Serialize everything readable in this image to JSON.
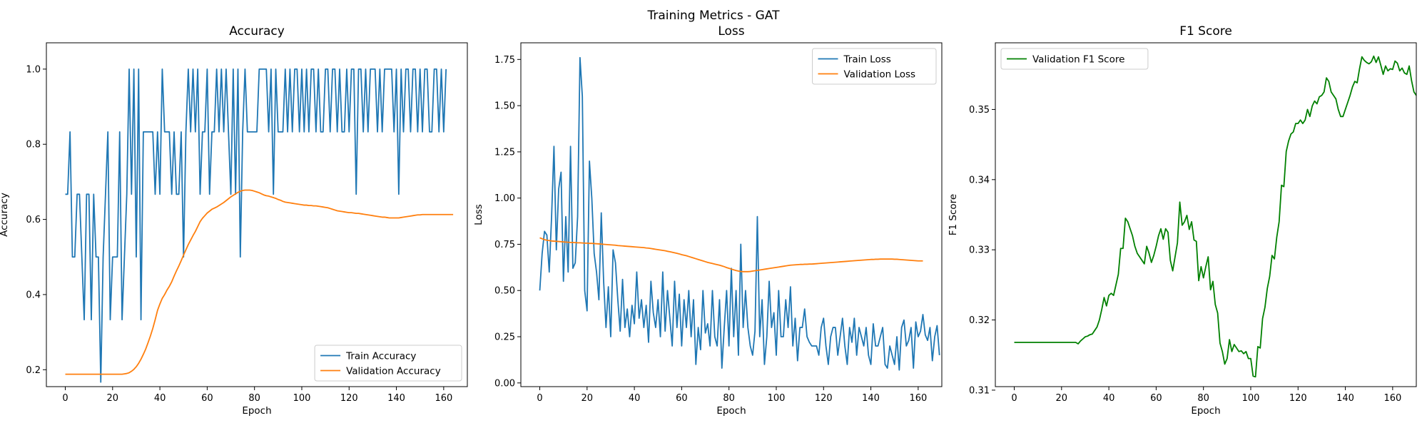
{
  "figure": {
    "suptitle": "Training Metrics - GAT"
  },
  "chart_data": [
    {
      "type": "line",
      "title": "Accuracy",
      "xlabel": "Epoch",
      "ylabel": "Accuracy",
      "xlim": [
        -8,
        170
      ],
      "ylim": [
        0.155,
        1.07
      ],
      "xticks": [
        0,
        20,
        40,
        60,
        80,
        100,
        120,
        140,
        160
      ],
      "yticks": [
        0.2,
        0.4,
        0.6,
        0.8,
        1.0
      ],
      "ytick_format": 1,
      "legend_loc": "lower-right",
      "series": [
        {
          "name": "Train Accuracy",
          "color": "#1f77b4",
          "x_start": 0,
          "values": [
            0.667,
            0.667,
            0.833,
            0.5,
            0.5,
            0.667,
            0.667,
            0.5,
            0.333,
            0.667,
            0.667,
            0.333,
            0.667,
            0.5,
            0.5,
            0.167,
            0.5,
            0.667,
            0.833,
            0.333,
            0.5,
            0.5,
            0.5,
            0.833,
            0.333,
            0.5,
            0.667,
            1.0,
            0.667,
            1.0,
            0.5,
            1.0,
            0.333,
            0.833,
            0.833,
            0.833,
            0.833,
            0.833,
            0.667,
            0.833,
            0.667,
            1.0,
            0.833,
            0.833,
            0.833,
            0.667,
            0.833,
            0.667,
            0.667,
            0.833,
            0.5,
            0.833,
            1.0,
            0.833,
            1.0,
            0.833,
            1.0,
            0.667,
            0.833,
            0.833,
            1.0,
            0.667,
            0.833,
            0.833,
            1.0,
            0.833,
            1.0,
            0.833,
            1.0,
            0.833,
            0.667,
            1.0,
            0.667,
            1.0,
            0.5,
            0.833,
            1.0,
            0.833,
            0.833,
            0.833,
            0.833,
            0.833,
            1.0,
            1.0,
            1.0,
            1.0,
            0.833,
            1.0,
            0.667,
            1.0,
            0.833,
            0.833,
            0.833,
            1.0,
            0.833,
            1.0,
            0.833,
            1.0,
            1.0,
            0.833,
            1.0,
            0.833,
            1.0,
            0.833,
            1.0,
            1.0,
            0.833,
            1.0,
            0.833,
            0.833,
            1.0,
            1.0,
            0.833,
            1.0,
            1.0,
            0.833,
            1.0,
            0.833,
            0.833,
            1.0,
            0.833,
            1.0,
            1.0,
            0.667,
            1.0,
            1.0,
            0.833,
            1.0,
            0.833,
            1.0,
            1.0,
            1.0,
            0.833,
            1.0,
            0.833,
            1.0,
            1.0,
            1.0,
            1.0,
            0.833,
            1.0,
            0.667,
            1.0,
            0.833,
            1.0,
            1.0,
            0.833,
            1.0,
            1.0,
            0.833,
            1.0,
            0.833,
            1.0,
            1.0,
            0.833,
            0.833,
            1.0,
            1.0,
            0.833,
            1.0,
            0.833,
            1.0
          ]
        },
        {
          "name": "Validation Accuracy",
          "color": "#ff7f0e",
          "x_start": 0,
          "values": [
            0.188,
            0.188,
            0.188,
            0.188,
            0.188,
            0.188,
            0.188,
            0.188,
            0.188,
            0.188,
            0.188,
            0.188,
            0.188,
            0.188,
            0.188,
            0.188,
            0.188,
            0.188,
            0.188,
            0.188,
            0.188,
            0.188,
            0.188,
            0.188,
            0.188,
            0.189,
            0.19,
            0.192,
            0.196,
            0.201,
            0.208,
            0.217,
            0.228,
            0.241,
            0.255,
            0.272,
            0.29,
            0.31,
            0.333,
            0.358,
            0.375,
            0.39,
            0.4,
            0.412,
            0.422,
            0.434,
            0.449,
            0.463,
            0.476,
            0.49,
            0.505,
            0.519,
            0.533,
            0.545,
            0.557,
            0.568,
            0.581,
            0.594,
            0.603,
            0.61,
            0.617,
            0.622,
            0.627,
            0.63,
            0.633,
            0.637,
            0.641,
            0.645,
            0.65,
            0.655,
            0.66,
            0.664,
            0.668,
            0.672,
            0.675,
            0.677,
            0.678,
            0.678,
            0.678,
            0.677,
            0.675,
            0.673,
            0.671,
            0.668,
            0.665,
            0.663,
            0.662,
            0.66,
            0.658,
            0.656,
            0.653,
            0.651,
            0.648,
            0.646,
            0.645,
            0.644,
            0.643,
            0.642,
            0.641,
            0.64,
            0.639,
            0.638,
            0.638,
            0.637,
            0.637,
            0.636,
            0.636,
            0.635,
            0.634,
            0.633,
            0.632,
            0.631,
            0.629,
            0.627,
            0.625,
            0.623,
            0.622,
            0.621,
            0.62,
            0.619,
            0.618,
            0.618,
            0.617,
            0.616,
            0.616,
            0.615,
            0.614,
            0.613,
            0.612,
            0.611,
            0.61,
            0.609,
            0.608,
            0.607,
            0.606,
            0.606,
            0.605,
            0.604,
            0.604,
            0.604,
            0.604,
            0.604,
            0.605,
            0.606,
            0.607,
            0.608,
            0.609,
            0.61,
            0.611,
            0.612,
            0.612,
            0.613,
            0.613,
            0.613,
            0.613,
            0.613,
            0.613,
            0.613,
            0.613,
            0.613,
            0.613,
            0.613,
            0.613,
            0.613,
            0.613
          ]
        }
      ]
    },
    {
      "type": "line",
      "title": "Loss",
      "xlabel": "Epoch",
      "ylabel": "Loss",
      "xlim": [
        -8,
        170
      ],
      "ylim": [
        -0.02,
        1.84
      ],
      "xticks": [
        0,
        20,
        40,
        60,
        80,
        100,
        120,
        140,
        160
      ],
      "yticks": [
        0.0,
        0.25,
        0.5,
        0.75,
        1.0,
        1.25,
        1.5,
        1.75
      ],
      "ytick_format": 2,
      "legend_loc": "upper-right",
      "series": [
        {
          "name": "Train Loss",
          "color": "#1f77b4",
          "x_start": 0,
          "values": [
            0.5,
            0.7,
            0.82,
            0.8,
            0.6,
            0.9,
            1.28,
            0.72,
            1.05,
            1.14,
            0.55,
            0.9,
            0.6,
            1.28,
            0.62,
            0.65,
            0.9,
            1.76,
            1.55,
            0.5,
            0.39,
            1.2,
            1.0,
            0.7,
            0.6,
            0.45,
            0.92,
            0.55,
            0.3,
            0.52,
            0.25,
            0.72,
            0.65,
            0.45,
            0.28,
            0.56,
            0.3,
            0.4,
            0.25,
            0.42,
            0.32,
            0.6,
            0.35,
            0.45,
            0.3,
            0.42,
            0.22,
            0.55,
            0.38,
            0.3,
            0.45,
            0.25,
            0.6,
            0.28,
            0.5,
            0.35,
            0.2,
            0.55,
            0.3,
            0.48,
            0.2,
            0.45,
            0.3,
            0.5,
            0.25,
            0.45,
            0.1,
            0.3,
            0.18,
            0.5,
            0.27,
            0.32,
            0.2,
            0.5,
            0.25,
            0.2,
            0.45,
            0.08,
            0.3,
            0.5,
            0.2,
            0.62,
            0.25,
            0.5,
            0.15,
            0.75,
            0.3,
            0.5,
            0.3,
            0.2,
            0.15,
            0.28,
            0.9,
            0.25,
            0.45,
            0.1,
            0.25,
            0.55,
            0.3,
            0.38,
            0.15,
            0.5,
            0.25,
            0.25,
            0.45,
            0.3,
            0.52,
            0.2,
            0.35,
            0.12,
            0.3,
            0.3,
            0.4,
            0.25,
            0.22,
            0.2,
            0.2,
            0.2,
            0.15,
            0.3,
            0.35,
            0.2,
            0.1,
            0.25,
            0.3,
            0.3,
            0.15,
            0.25,
            0.35,
            0.2,
            0.1,
            0.3,
            0.22,
            0.35,
            0.15,
            0.3,
            0.25,
            0.2,
            0.3,
            0.15,
            0.1,
            0.32,
            0.2,
            0.2,
            0.25,
            0.3,
            0.1,
            0.08,
            0.2,
            0.15,
            0.1,
            0.25,
            0.07,
            0.3,
            0.34,
            0.2,
            0.23,
            0.3,
            0.08,
            0.33,
            0.25,
            0.28,
            0.37,
            0.26,
            0.23,
            0.3,
            0.12,
            0.25,
            0.31,
            0.15
          ]
        },
        {
          "name": "Validation Loss",
          "color": "#ff7f0e",
          "x_start": 0,
          "values": [
            0.785,
            0.78,
            0.775,
            0.772,
            0.77,
            0.768,
            0.767,
            0.766,
            0.765,
            0.764,
            0.763,
            0.762,
            0.761,
            0.76,
            0.76,
            0.759,
            0.758,
            0.758,
            0.757,
            0.756,
            0.756,
            0.755,
            0.755,
            0.754,
            0.753,
            0.752,
            0.751,
            0.75,
            0.749,
            0.748,
            0.747,
            0.746,
            0.745,
            0.743,
            0.742,
            0.741,
            0.74,
            0.739,
            0.738,
            0.737,
            0.736,
            0.735,
            0.734,
            0.733,
            0.732,
            0.73,
            0.729,
            0.727,
            0.725,
            0.723,
            0.721,
            0.719,
            0.717,
            0.715,
            0.712,
            0.71,
            0.707,
            0.704,
            0.701,
            0.698,
            0.694,
            0.691,
            0.688,
            0.684,
            0.68,
            0.676,
            0.672,
            0.668,
            0.664,
            0.66,
            0.656,
            0.652,
            0.649,
            0.646,
            0.643,
            0.64,
            0.637,
            0.633,
            0.629,
            0.624,
            0.62,
            0.616,
            0.612,
            0.608,
            0.605,
            0.603,
            0.602,
            0.602,
            0.602,
            0.603,
            0.605,
            0.607,
            0.609,
            0.611,
            0.613,
            0.615,
            0.617,
            0.619,
            0.621,
            0.623,
            0.625,
            0.627,
            0.629,
            0.631,
            0.633,
            0.635,
            0.637,
            0.638,
            0.639,
            0.64,
            0.641,
            0.641,
            0.642,
            0.642,
            0.643,
            0.643,
            0.644,
            0.645,
            0.646,
            0.647,
            0.648,
            0.649,
            0.65,
            0.651,
            0.652,
            0.653,
            0.654,
            0.655,
            0.656,
            0.657,
            0.658,
            0.659,
            0.66,
            0.661,
            0.662,
            0.663,
            0.664,
            0.665,
            0.666,
            0.667,
            0.668,
            0.668,
            0.669,
            0.669,
            0.67,
            0.67,
            0.67,
            0.67,
            0.67,
            0.67,
            0.669,
            0.669,
            0.668,
            0.667,
            0.666,
            0.665,
            0.664,
            0.663,
            0.662,
            0.661,
            0.66,
            0.66,
            0.66
          ]
        }
      ]
    },
    {
      "type": "line",
      "title": "F1 Score",
      "xlabel": "Epoch",
      "ylabel": "F1 Score",
      "xlim": [
        -8,
        170
      ],
      "ylim": [
        0.3105,
        0.3595
      ],
      "xticks": [
        0,
        20,
        40,
        60,
        80,
        100,
        120,
        140,
        160
      ],
      "yticks": [
        0.31,
        0.32,
        0.33,
        0.34,
        0.35
      ],
      "ytick_format": 2,
      "legend_loc": "upper-left",
      "series": [
        {
          "name": "Validation F1 Score",
          "color": "#008000",
          "x_start": 0,
          "values": [
            0.3168,
            0.3168,
            0.3168,
            0.3168,
            0.3168,
            0.3168,
            0.3168,
            0.3168,
            0.3168,
            0.3168,
            0.3168,
            0.3168,
            0.3168,
            0.3168,
            0.3168,
            0.3168,
            0.3168,
            0.3168,
            0.3168,
            0.3168,
            0.3168,
            0.3168,
            0.3168,
            0.3168,
            0.3168,
            0.3168,
            0.3168,
            0.3166,
            0.317,
            0.3173,
            0.3176,
            0.3177,
            0.3179,
            0.318,
            0.3185,
            0.319,
            0.32,
            0.3215,
            0.3232,
            0.322,
            0.3235,
            0.3238,
            0.3235,
            0.325,
            0.3265,
            0.3302,
            0.3302,
            0.3345,
            0.334,
            0.333,
            0.332,
            0.3305,
            0.3295,
            0.329,
            0.3285,
            0.328,
            0.3305,
            0.3295,
            0.3282,
            0.3292,
            0.3305,
            0.332,
            0.333,
            0.3315,
            0.333,
            0.3325,
            0.3285,
            0.327,
            0.329,
            0.331,
            0.3368,
            0.3335,
            0.334,
            0.3349,
            0.3329,
            0.334,
            0.3314,
            0.3312,
            0.3256,
            0.3276,
            0.326,
            0.3276,
            0.329,
            0.3243,
            0.3255,
            0.3222,
            0.321,
            0.3167,
            0.3155,
            0.3137,
            0.3145,
            0.3172,
            0.3155,
            0.3165,
            0.316,
            0.3155,
            0.3156,
            0.3152,
            0.3155,
            0.3145,
            0.3145,
            0.312,
            0.3119,
            0.3162,
            0.316,
            0.3202,
            0.3218,
            0.3245,
            0.3262,
            0.3292,
            0.3287,
            0.3318,
            0.334,
            0.3392,
            0.339,
            0.344,
            0.3455,
            0.3465,
            0.3468,
            0.348,
            0.348,
            0.3485,
            0.348,
            0.3485,
            0.35,
            0.349,
            0.3505,
            0.3512,
            0.3508,
            0.3518,
            0.352,
            0.3525,
            0.3545,
            0.354,
            0.3525,
            0.352,
            0.3515,
            0.35,
            0.349,
            0.349,
            0.35,
            0.351,
            0.352,
            0.3532,
            0.354,
            0.3538,
            0.3558,
            0.3575,
            0.357,
            0.3567,
            0.3565,
            0.3568,
            0.3576,
            0.3567,
            0.3575,
            0.3563,
            0.355,
            0.3562,
            0.3555,
            0.3558,
            0.3557,
            0.3569,
            0.3566,
            0.3555,
            0.3559,
            0.3552,
            0.355,
            0.3562,
            0.3541,
            0.3525,
            0.352,
            0.3515,
            0.3513
          ]
        }
      ]
    }
  ]
}
